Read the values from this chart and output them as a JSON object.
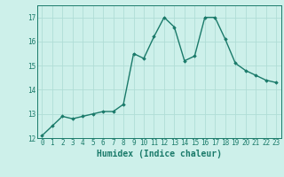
{
  "x": [
    0,
    1,
    2,
    3,
    4,
    5,
    6,
    7,
    8,
    9,
    10,
    11,
    12,
    13,
    14,
    15,
    16,
    17,
    18,
    19,
    20,
    21,
    22,
    23
  ],
  "y": [
    12.1,
    12.5,
    12.9,
    12.8,
    12.9,
    13.0,
    13.1,
    13.1,
    13.4,
    15.5,
    15.3,
    16.2,
    17.0,
    16.6,
    15.2,
    15.4,
    17.0,
    17.0,
    16.1,
    15.1,
    14.8,
    14.6,
    14.4,
    14.3
  ],
  "line_color": "#1a7a6a",
  "marker": "D",
  "marker_size": 1.8,
  "bg_color": "#cdf0ea",
  "grid_color": "#b0ddd6",
  "xlabel": "Humidex (Indice chaleur)",
  "ylim": [
    12,
    17.5
  ],
  "xlim": [
    -0.5,
    23.5
  ],
  "yticks": [
    12,
    13,
    14,
    15,
    16,
    17
  ],
  "xticks": [
    0,
    1,
    2,
    3,
    4,
    5,
    6,
    7,
    8,
    9,
    10,
    11,
    12,
    13,
    14,
    15,
    16,
    17,
    18,
    19,
    20,
    21,
    22,
    23
  ],
  "tick_fontsize": 5.5,
  "xlabel_fontsize": 7.0,
  "linewidth": 1.0
}
